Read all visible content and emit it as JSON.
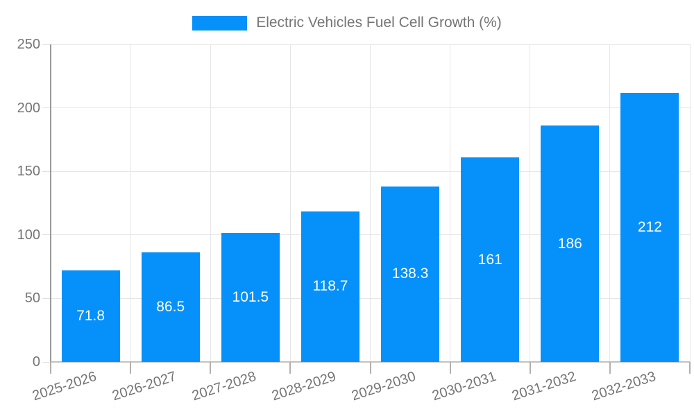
{
  "chart_data": {
    "type": "bar",
    "title": "Electric Vehicles Fuel Cell Growth (%)",
    "categories": [
      "2025-2026",
      "2026-2027",
      "2027-2028",
      "2028-2029",
      "2029-2030",
      "2030-2031",
      "2031-2032",
      "2032-2033"
    ],
    "values": [
      71.8,
      86.5,
      101.5,
      118.7,
      138.3,
      161,
      186,
      212
    ],
    "value_labels": [
      "71.8",
      "86.5",
      "101.5",
      "118.7",
      "138.3",
      "161",
      "186",
      "212"
    ],
    "xlabel": "",
    "ylabel": "",
    "ylim": [
      0,
      250
    ],
    "yticks": [
      "0",
      "50",
      "100",
      "150",
      "200",
      "250"
    ],
    "grid": true,
    "legend_position": "top",
    "colors": {
      "bar": "#0590fa",
      "bar_label": "#ffffff",
      "axis_text": "#757575",
      "y_axis_line": "#9a9a9a",
      "x_axis_line": "#c2c2c2",
      "x_tick": "#b0b0b0",
      "y_tick": "#e0e0e0",
      "gridline": "#e6e6e6",
      "background": "#ffffff"
    }
  }
}
